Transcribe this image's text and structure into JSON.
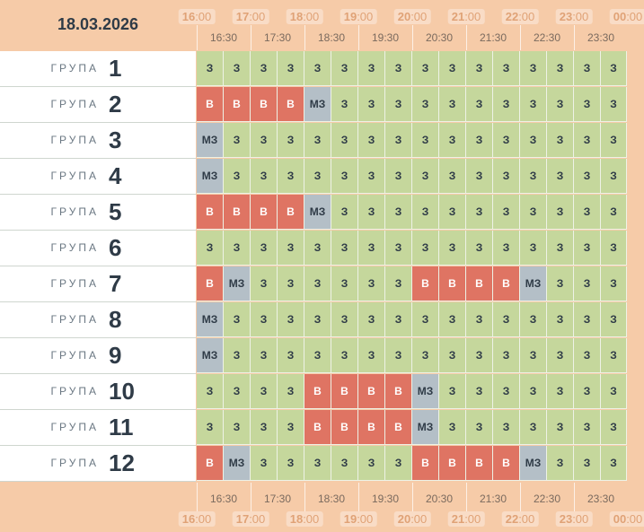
{
  "date": "18.03.2026",
  "hours": [
    {
      "h": "16",
      "m": ":00"
    },
    {
      "h": "17",
      "m": ":00"
    },
    {
      "h": "18",
      "m": ":00"
    },
    {
      "h": "19",
      "m": ":00"
    },
    {
      "h": "20",
      "m": ":00"
    },
    {
      "h": "21",
      "m": ":00"
    },
    {
      "h": "22",
      "m": ":00"
    },
    {
      "h": "23",
      "m": ":00"
    },
    {
      "h": "00",
      "m": ":00"
    }
  ],
  "half_hours": [
    "16:30",
    "17:30",
    "18:30",
    "19:30",
    "20:30",
    "21:30",
    "22:30",
    "23:30"
  ],
  "group_word": "ГРУПА",
  "status_labels": {
    "z": "З",
    "v": "В",
    "m": "МЗ"
  },
  "status_colors": {
    "z": "#c5d79c",
    "v": "#df7463",
    "m": "#b4bfc7"
  },
  "groups": [
    {
      "number": "1",
      "slots": [
        "z",
        "z",
        "z",
        "z",
        "z",
        "z",
        "z",
        "z",
        "z",
        "z",
        "z",
        "z",
        "z",
        "z",
        "z",
        "z"
      ]
    },
    {
      "number": "2",
      "slots": [
        "v",
        "v",
        "v",
        "v",
        "m",
        "z",
        "z",
        "z",
        "z",
        "z",
        "z",
        "z",
        "z",
        "z",
        "z",
        "z"
      ]
    },
    {
      "number": "3",
      "slots": [
        "m",
        "z",
        "z",
        "z",
        "z",
        "z",
        "z",
        "z",
        "z",
        "z",
        "z",
        "z",
        "z",
        "z",
        "z",
        "z"
      ]
    },
    {
      "number": "4",
      "slots": [
        "m",
        "z",
        "z",
        "z",
        "z",
        "z",
        "z",
        "z",
        "z",
        "z",
        "z",
        "z",
        "z",
        "z",
        "z",
        "z"
      ]
    },
    {
      "number": "5",
      "slots": [
        "v",
        "v",
        "v",
        "v",
        "m",
        "z",
        "z",
        "z",
        "z",
        "z",
        "z",
        "z",
        "z",
        "z",
        "z",
        "z"
      ]
    },
    {
      "number": "6",
      "slots": [
        "z",
        "z",
        "z",
        "z",
        "z",
        "z",
        "z",
        "z",
        "z",
        "z",
        "z",
        "z",
        "z",
        "z",
        "z",
        "z"
      ]
    },
    {
      "number": "7",
      "slots": [
        "v",
        "m",
        "z",
        "z",
        "z",
        "z",
        "z",
        "z",
        "v",
        "v",
        "v",
        "v",
        "m",
        "z",
        "z",
        "z"
      ]
    },
    {
      "number": "8",
      "slots": [
        "m",
        "z",
        "z",
        "z",
        "z",
        "z",
        "z",
        "z",
        "z",
        "z",
        "z",
        "z",
        "z",
        "z",
        "z",
        "z"
      ]
    },
    {
      "number": "9",
      "slots": [
        "m",
        "z",
        "z",
        "z",
        "z",
        "z",
        "z",
        "z",
        "z",
        "z",
        "z",
        "z",
        "z",
        "z",
        "z",
        "z"
      ]
    },
    {
      "number": "10",
      "slots": [
        "z",
        "z",
        "z",
        "z",
        "v",
        "v",
        "v",
        "v",
        "m",
        "z",
        "z",
        "z",
        "z",
        "z",
        "z",
        "z"
      ]
    },
    {
      "number": "11",
      "slots": [
        "z",
        "z",
        "z",
        "z",
        "v",
        "v",
        "v",
        "v",
        "m",
        "z",
        "z",
        "z",
        "z",
        "z",
        "z",
        "z"
      ]
    },
    {
      "number": "12",
      "slots": [
        "v",
        "m",
        "z",
        "z",
        "z",
        "z",
        "z",
        "z",
        "v",
        "v",
        "v",
        "v",
        "m",
        "z",
        "z",
        "z"
      ]
    }
  ]
}
